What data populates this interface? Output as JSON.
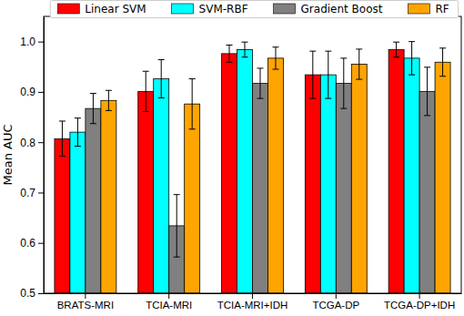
{
  "chart_data": {
    "type": "bar",
    "y_label": "Mean AUC",
    "categories": [
      "BRATS-MRI",
      "TCIA-MRI",
      "TCIA-MRI+IDH",
      "TCGA-DP",
      "TCGA-DP+IDH"
    ],
    "series": [
      {
        "name": "Linear SVM",
        "color": "#ff0000",
        "values": [
          0.807,
          0.901,
          0.976,
          0.934,
          0.984
        ],
        "errors": [
          0.035,
          0.04,
          0.017,
          0.047,
          0.015
        ]
      },
      {
        "name": "SVM-RBF",
        "color": "#00ffff",
        "values": [
          0.82,
          0.926,
          0.984,
          0.934,
          0.967
        ],
        "errors": [
          0.028,
          0.038,
          0.015,
          0.047,
          0.033
        ]
      },
      {
        "name": "Gradient Boost",
        "color": "#808080",
        "values": [
          0.867,
          0.634,
          0.917,
          0.917,
          0.901
        ],
        "errors": [
          0.03,
          0.062,
          0.03,
          0.05,
          0.048
        ]
      },
      {
        "name": "RF",
        "color": "#ffa500",
        "values": [
          0.883,
          0.876,
          0.967,
          0.955,
          0.959
        ],
        "errors": [
          0.02,
          0.05,
          0.022,
          0.03,
          0.028
        ]
      }
    ],
    "ylim": [
      0.5,
      1.05
    ],
    "yticks": [
      0.5,
      0.6,
      0.7,
      0.8,
      0.9,
      {
        "value": 1,
        "label": "1.0"
      }
    ],
    "grid": false,
    "legend": "top"
  }
}
